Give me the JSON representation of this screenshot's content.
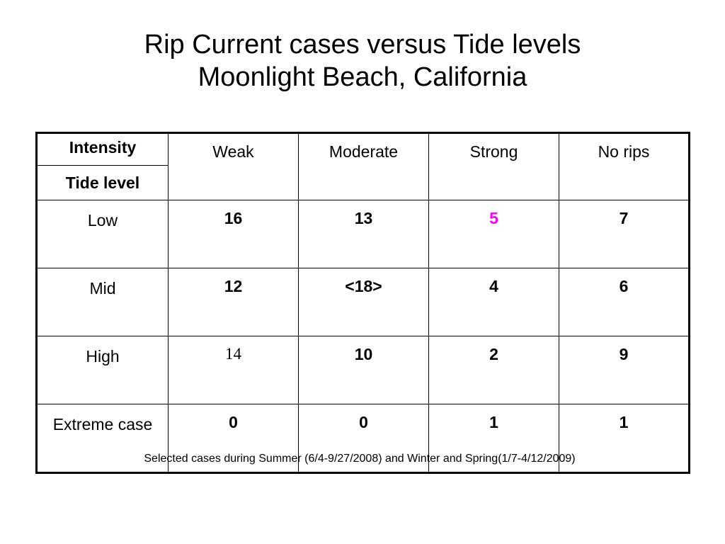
{
  "title": {
    "line1": "Rip Current cases versus Tide levels",
    "line2": "Moonlight Beach, California"
  },
  "table": {
    "corner_top": "Intensity",
    "corner_bottom": "Tide level",
    "columns": [
      "Weak",
      "Moderate",
      "Strong",
      "No rips"
    ],
    "rows": [
      {
        "label": "Low",
        "values": [
          "16",
          "13",
          "5",
          "7"
        ]
      },
      {
        "label": "Mid",
        "values": [
          "12",
          "<18>",
          "4",
          "6"
        ]
      },
      {
        "label": "High",
        "values": [
          "14",
          "10",
          "2",
          "9"
        ]
      },
      {
        "label": "Extreme case",
        "values": [
          "0",
          "0",
          "1",
          "1"
        ]
      }
    ],
    "highlight_color": "#ff00ff"
  },
  "footnote": "Selected cases during Summer (6/4-9/27/2008) and Winter and Spring(1/7-4/12/2009)"
}
